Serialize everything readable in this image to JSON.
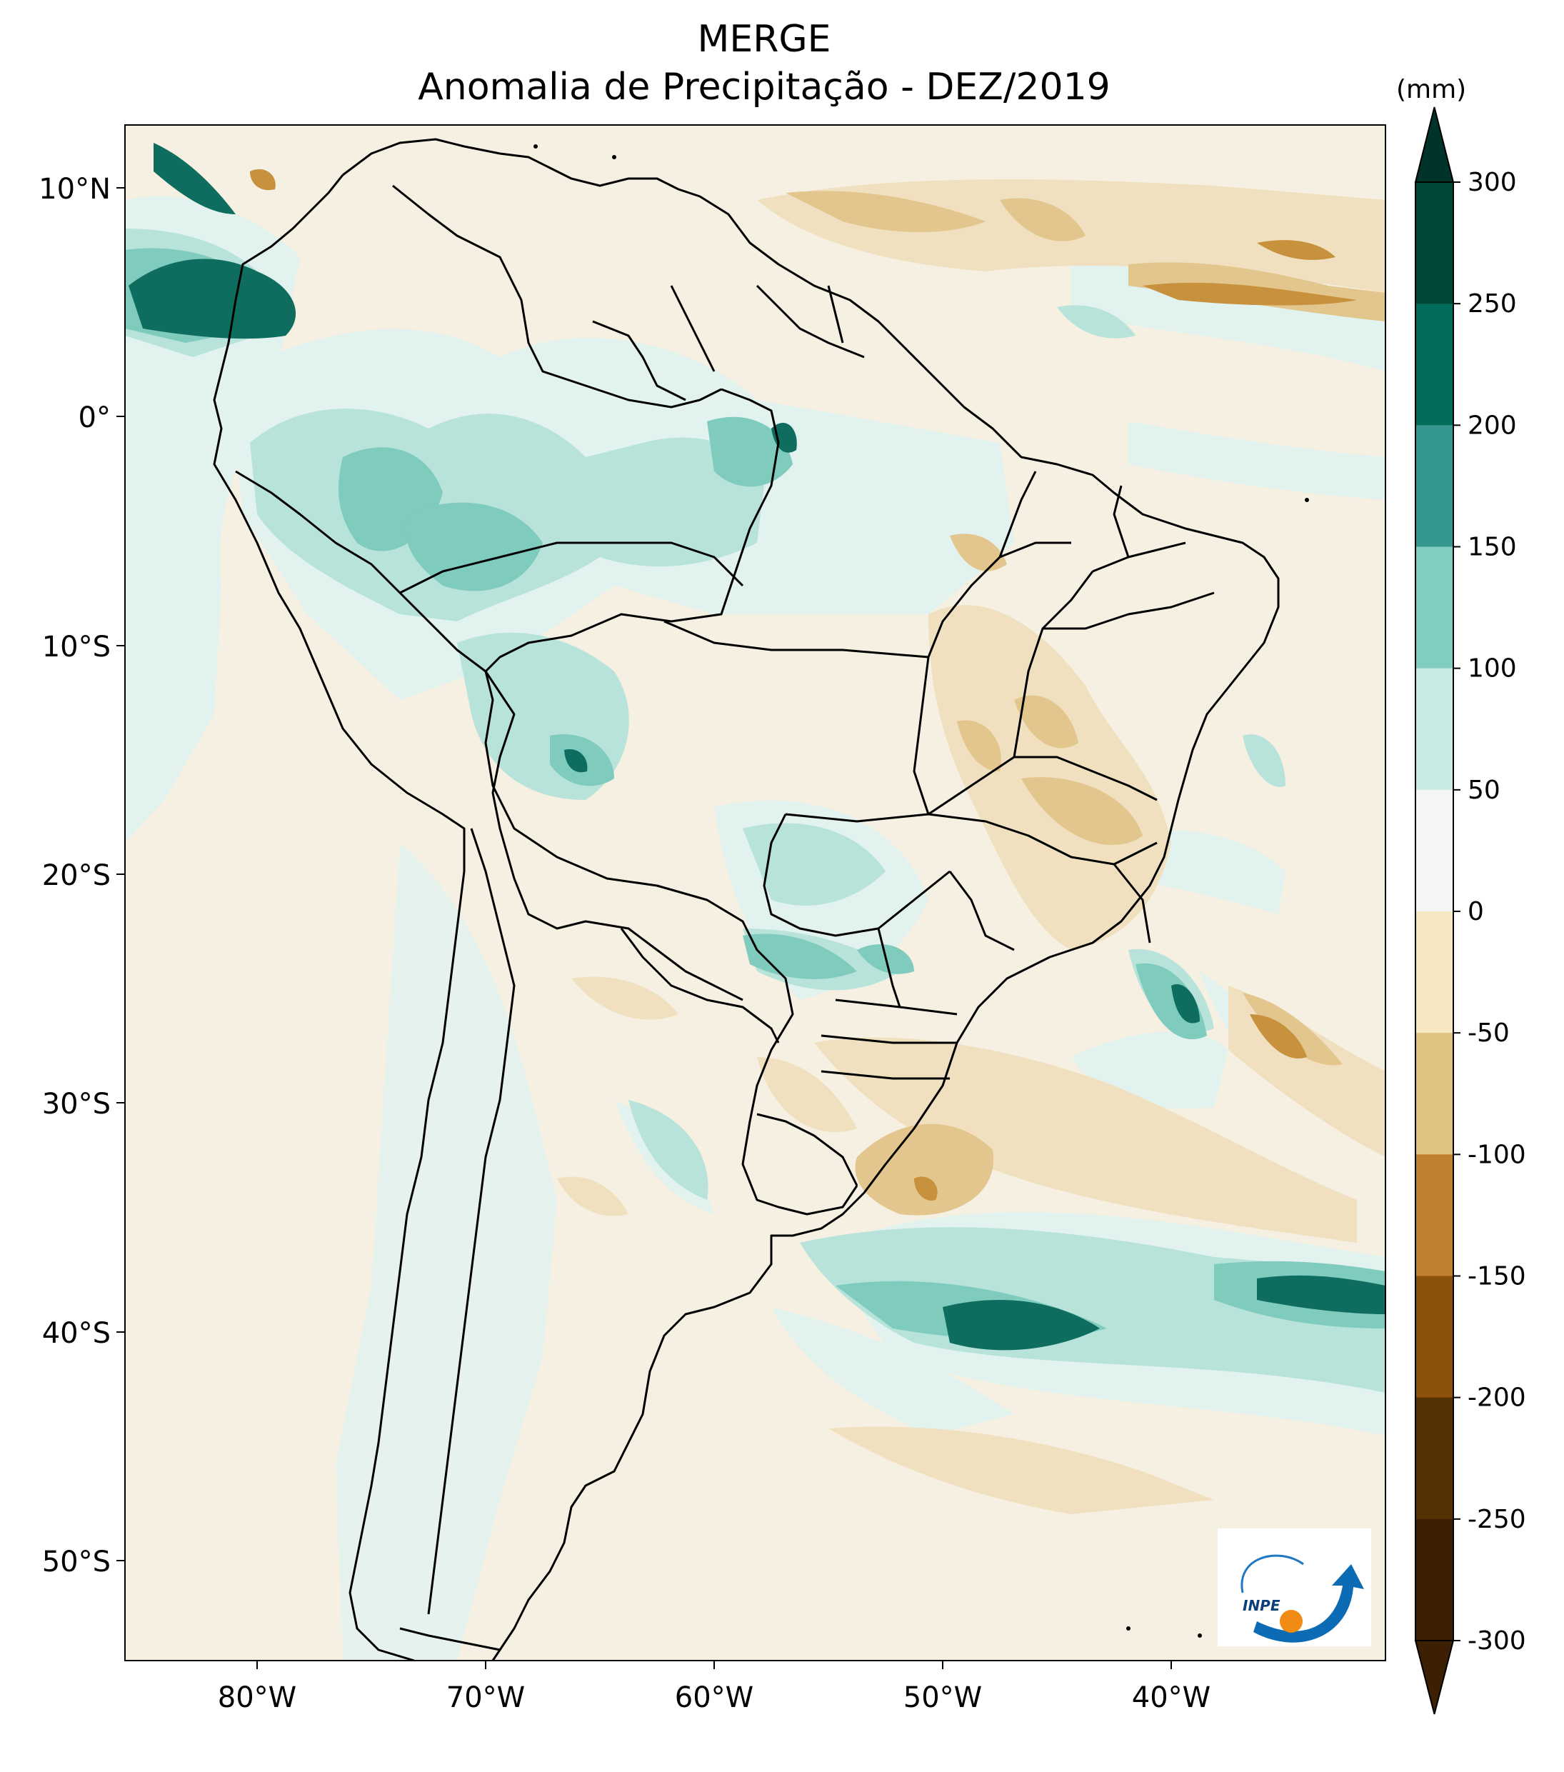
{
  "title": "MERGE",
  "subtitle": "Anomalia de Precipitação - DEZ/2019",
  "colorbar": {
    "unit": "(mm)",
    "ticks": [
      "300",
      "250",
      "200",
      "150",
      "100",
      "50",
      "0",
      "-50",
      "-100",
      "-150",
      "-200",
      "-250",
      "-300"
    ],
    "colors": [
      "#014636",
      "#016c59",
      "#35978f",
      "#80cdc1",
      "#c7eae5",
      "#f5f5f5",
      "#f6e8c3",
      "#dfc27d",
      "#bf812d",
      "#8c510a",
      "#543005",
      "#3d2003"
    ],
    "top_color": "#00332a",
    "bottom_color": "#3d2003"
  },
  "axes": {
    "lat_labels": [
      "10°N",
      "0°",
      "10°S",
      "20°S",
      "30°S",
      "40°S",
      "50°S"
    ],
    "lon_labels": [
      "80°W",
      "70°W",
      "60°W",
      "50°W",
      "40°W"
    ]
  },
  "logo": {
    "text": "INPE"
  },
  "colors": {
    "background": "#f6f0e2",
    "wet1": "#e2f2ee",
    "wet2": "#b8e3da",
    "wet3": "#7fcbbd",
    "wet4": "#3d9b8e",
    "wet5": "#0f6d5f",
    "wet6": "#0b4a3f",
    "dry1": "#f0e0bf",
    "dry2": "#e3c68d",
    "dry3": "#c7913d",
    "dry4": "#9a6415"
  }
}
